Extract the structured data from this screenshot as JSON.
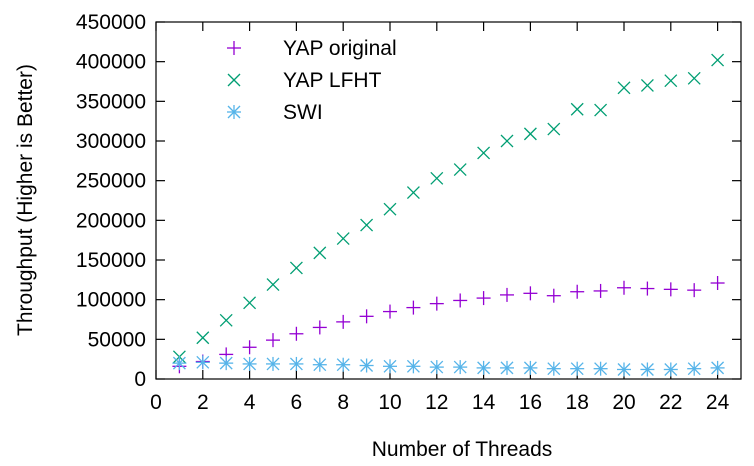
{
  "chart_data": {
    "type": "scatter",
    "title": "",
    "xlabel": "Number of Threads",
    "ylabel": "Throughput (Higher is Better)",
    "xlim": [
      0,
      25
    ],
    "ylim": [
      0,
      450000
    ],
    "x_ticks": [
      "0",
      "2",
      "4",
      "6",
      "8",
      "10",
      "12",
      "14",
      "16",
      "18",
      "20",
      "22",
      "24"
    ],
    "y_ticks": [
      "0",
      "50000",
      "100000",
      "150000",
      "200000",
      "250000",
      "300000",
      "350000",
      "400000",
      "450000"
    ],
    "grid": false,
    "legend_position": "top-left",
    "x": [
      1,
      2,
      3,
      4,
      5,
      6,
      7,
      8,
      9,
      10,
      11,
      12,
      13,
      14,
      15,
      16,
      17,
      18,
      19,
      20,
      21,
      22,
      23,
      24
    ],
    "series": [
      {
        "name": "YAP original",
        "marker": "plus",
        "color": "#9400d3",
        "values": [
          16000,
          22000,
          31000,
          40000,
          49000,
          57000,
          65000,
          72000,
          79000,
          85000,
          90000,
          95000,
          99000,
          102000,
          106000,
          108000,
          105000,
          110000,
          111000,
          115000,
          114000,
          113000,
          112000,
          121000
        ]
      },
      {
        "name": "YAP LFHT",
        "marker": "cross",
        "color": "#009e73",
        "values": [
          28000,
          52000,
          74000,
          96000,
          119000,
          140000,
          159000,
          177000,
          194000,
          214000,
          235000,
          253000,
          264000,
          285000,
          300000,
          309000,
          315000,
          340000,
          339000,
          367000,
          370000,
          376000,
          379000,
          402000
        ]
      },
      {
        "name": "SWI",
        "marker": "asterisk",
        "color": "#56b4e9",
        "values": [
          20000,
          21000,
          20000,
          19000,
          19000,
          19000,
          18000,
          18000,
          17000,
          16000,
          16000,
          15000,
          15000,
          14000,
          14000,
          14000,
          13000,
          13000,
          13000,
          12000,
          12000,
          12000,
          13000,
          14000
        ]
      }
    ]
  }
}
